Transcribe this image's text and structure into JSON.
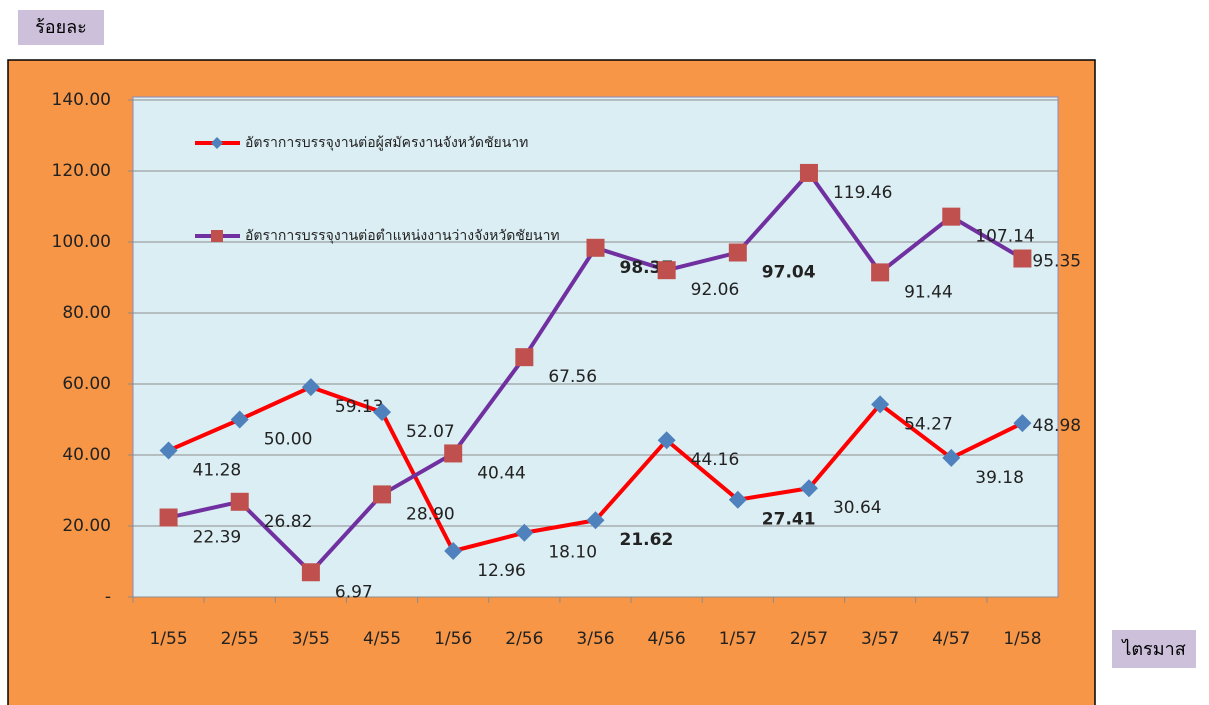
{
  "chart_data": {
    "type": "line",
    "y_axis_label": "ร้อยละ",
    "x_axis_label": "ไตรมาส",
    "categories": [
      "1/55",
      "2/55",
      "3/55",
      "4/55",
      "1/56",
      "2/56",
      "3/56",
      "4/56",
      "1/57",
      "2/57",
      "3/57",
      "4/57",
      "1/58"
    ],
    "series": [
      {
        "name": "อัตราการบรรจุงานต่อผู้สมัครงานจังหวัดชัยนาท",
        "color": "#ff0000",
        "marker_color": "#4f81bd",
        "marker": "diamond",
        "values": [
          41.28,
          50.0,
          59.13,
          52.07,
          12.96,
          18.1,
          21.62,
          44.16,
          27.41,
          30.64,
          54.27,
          39.18,
          48.98
        ],
        "value_labels": [
          "41.28",
          "50.00",
          "59.13",
          "52.07",
          "12.96",
          "18.10",
          "21.62",
          "44.16",
          "27.41",
          "30.64",
          "54.27",
          "39.18",
          "48.98"
        ]
      },
      {
        "name": "อัตราการบรรจุงานต่อตำแหน่งงานว่างจังหวัดชัยนาท",
        "color": "#7030a0",
        "marker_color": "#c0504d",
        "marker": "square",
        "values": [
          22.39,
          26.82,
          6.97,
          28.9,
          40.44,
          67.56,
          98.37,
          92.06,
          97.04,
          119.46,
          91.44,
          107.14,
          95.35
        ],
        "value_labels": [
          "22.39",
          "26.82",
          "6.97",
          "28.90",
          "40.44",
          "67.56",
          "98.37",
          "92.06",
          "97.04",
          "119.46",
          "91.44",
          "107.14",
          "95.35"
        ]
      }
    ],
    "ylim": [
      0,
      140
    ],
    "yticks": [
      {
        "value": 0,
        "label": "-"
      },
      {
        "value": 20,
        "label": "20.00"
      },
      {
        "value": 40,
        "label": "40.00"
      },
      {
        "value": 60,
        "label": "60.00"
      },
      {
        "value": 80,
        "label": "80.00"
      },
      {
        "value": 100,
        "label": "100.00"
      },
      {
        "value": 120,
        "label": "120.00"
      },
      {
        "value": 140,
        "label": "140.00"
      }
    ],
    "grid": true
  }
}
